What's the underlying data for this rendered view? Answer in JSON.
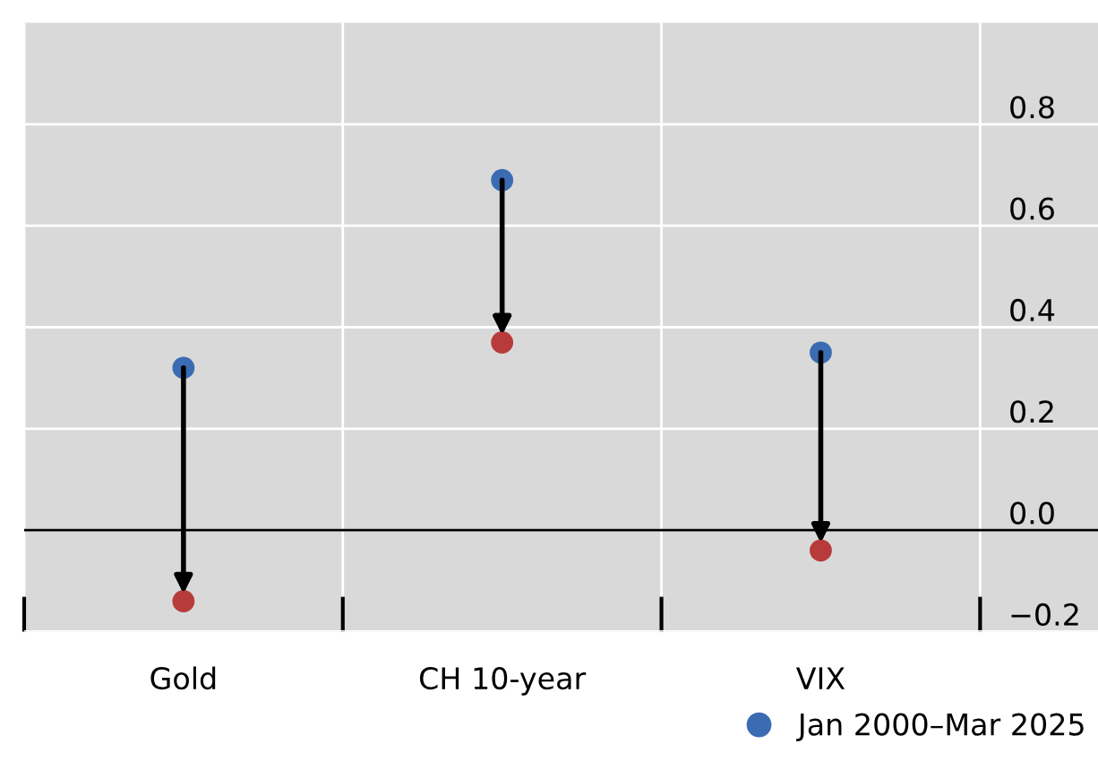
{
  "chart_data": {
    "type": "scatter",
    "categories": [
      "Gold",
      "CH 10-year",
      "VIX"
    ],
    "series": [
      {
        "name": "Jan 2000–Mar 2025",
        "color": "#3b6cb3",
        "values": [
          0.32,
          0.69,
          0.35
        ]
      },
      {
        "color": "#b73b3b",
        "values": [
          -0.14,
          0.37,
          -0.04
        ]
      }
    ],
    "ylim": [
      -0.2,
      1.0
    ],
    "yticks": [
      {
        "value": -0.2,
        "label": "−0.2"
      },
      {
        "value": 0,
        "label": "0.0"
      },
      {
        "value": 0.2,
        "label": "0.2"
      },
      {
        "value": 0.4,
        "label": "0.4"
      },
      {
        "value": 0.6,
        "label": "0.6"
      },
      {
        "value": 0.8,
        "label": "0.8"
      }
    ],
    "grid": true,
    "legend": "bottom right",
    "marker": "circle",
    "ref_lines": [
      {
        "axis": "y",
        "value": 0,
        "color": "#000000"
      }
    ]
  }
}
